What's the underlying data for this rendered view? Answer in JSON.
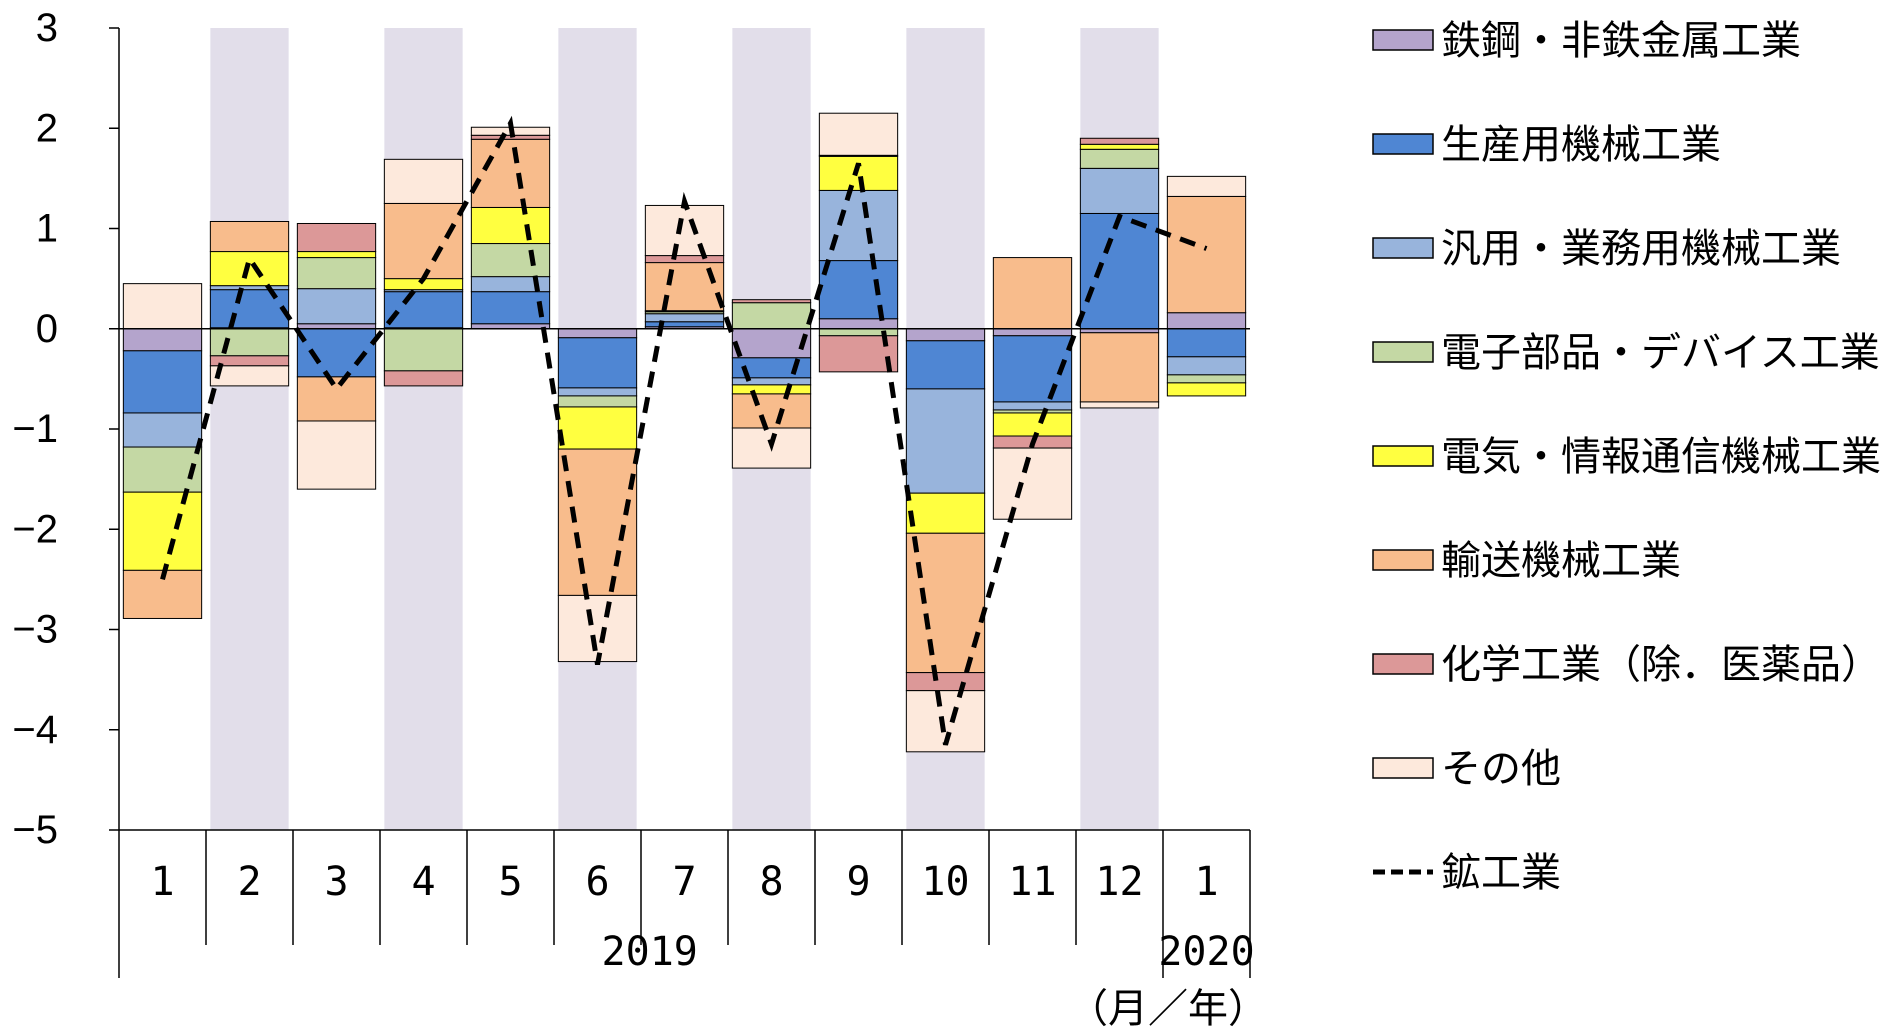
{
  "chart_data": {
    "type": "bar",
    "stacked": true,
    "categories": [
      "1",
      "2",
      "3",
      "4",
      "5",
      "6",
      "7",
      "8",
      "9",
      "10",
      "11",
      "12",
      "1"
    ],
    "year_labels": [
      "2019",
      "2020"
    ],
    "x_unit_label": "（月／年）",
    "ylim": [
      -5,
      3
    ],
    "yticks": [
      3,
      2,
      1,
      0,
      -1,
      -2,
      -3,
      -4,
      -5
    ],
    "ytick_labels": [
      "3",
      "2",
      "1",
      "0",
      "−1",
      "−2",
      "−3",
      "−4",
      "−5"
    ],
    "shaded_columns": [
      1,
      3,
      5,
      7,
      9,
      11
    ],
    "shade_color": "#e2deea",
    "legend_position": "right",
    "series": [
      {
        "name": "鉄鋼・非鉄金属工業",
        "color": "#b4a4cc",
        "values": [
          -0.22,
          0.01,
          0.05,
          0.01,
          0.05,
          -0.09,
          0.02,
          -0.29,
          0.1,
          -0.12,
          -0.07,
          -0.04,
          0.16
        ]
      },
      {
        "name": "生産用機械工業",
        "color": "#4f86d3",
        "values": [
          -0.62,
          0.38,
          -0.48,
          0.36,
          0.32,
          -0.5,
          0.05,
          -0.2,
          0.58,
          -0.48,
          -0.66,
          1.15,
          -0.28
        ]
      },
      {
        "name": "汎用・業務用機械工業",
        "color": "#98b4dc",
        "values": [
          -0.34,
          0.04,
          0.35,
          0.02,
          0.15,
          -0.08,
          0.08,
          -0.07,
          0.7,
          -1.04,
          -0.08,
          0.45,
          -0.18
        ]
      },
      {
        "name": "電子部品・デバイス工業",
        "color": "#c4d8a4",
        "values": [
          -0.45,
          -0.27,
          0.31,
          -0.42,
          0.33,
          -0.11,
          0.02,
          0.26,
          -0.07,
          0.0,
          -0.03,
          0.19,
          -0.08
        ]
      },
      {
        "name": "電気・情報通信機械工業",
        "color": "#ffff40",
        "values": [
          -0.78,
          0.34,
          0.06,
          0.11,
          0.36,
          -0.42,
          0.01,
          -0.09,
          0.34,
          -0.4,
          -0.23,
          0.05,
          -0.13
        ]
      },
      {
        "name": "輸送機械工業",
        "color": "#f8bc8c",
        "values": [
          -0.48,
          0.3,
          -0.44,
          0.75,
          0.68,
          -1.46,
          0.48,
          -0.34,
          0.01,
          -1.39,
          0.71,
          -0.69,
          1.16
        ]
      },
      {
        "name": "化学工業（除．医薬品）",
        "color": "#dc9898",
        "values": [
          0.0,
          -0.1,
          0.28,
          -0.15,
          0.04,
          0.0,
          0.07,
          0.03,
          -0.36,
          -0.18,
          -0.12,
          0.06,
          0.0
        ]
      },
      {
        "name": "その他",
        "color": "#fde9dc",
        "values": [
          0.45,
          -0.2,
          -0.68,
          0.44,
          0.08,
          -0.66,
          0.5,
          -0.4,
          0.42,
          -0.61,
          -0.71,
          -0.06,
          0.2
        ]
      }
    ],
    "line_series": {
      "name": "鉱工業",
      "style": "dashed",
      "color": "#000000",
      "values": [
        -2.5,
        0.7,
        -0.6,
        0.5,
        2.05,
        -3.35,
        1.27,
        -1.15,
        1.65,
        -4.15,
        -1.15,
        1.12,
        0.8
      ]
    }
  }
}
